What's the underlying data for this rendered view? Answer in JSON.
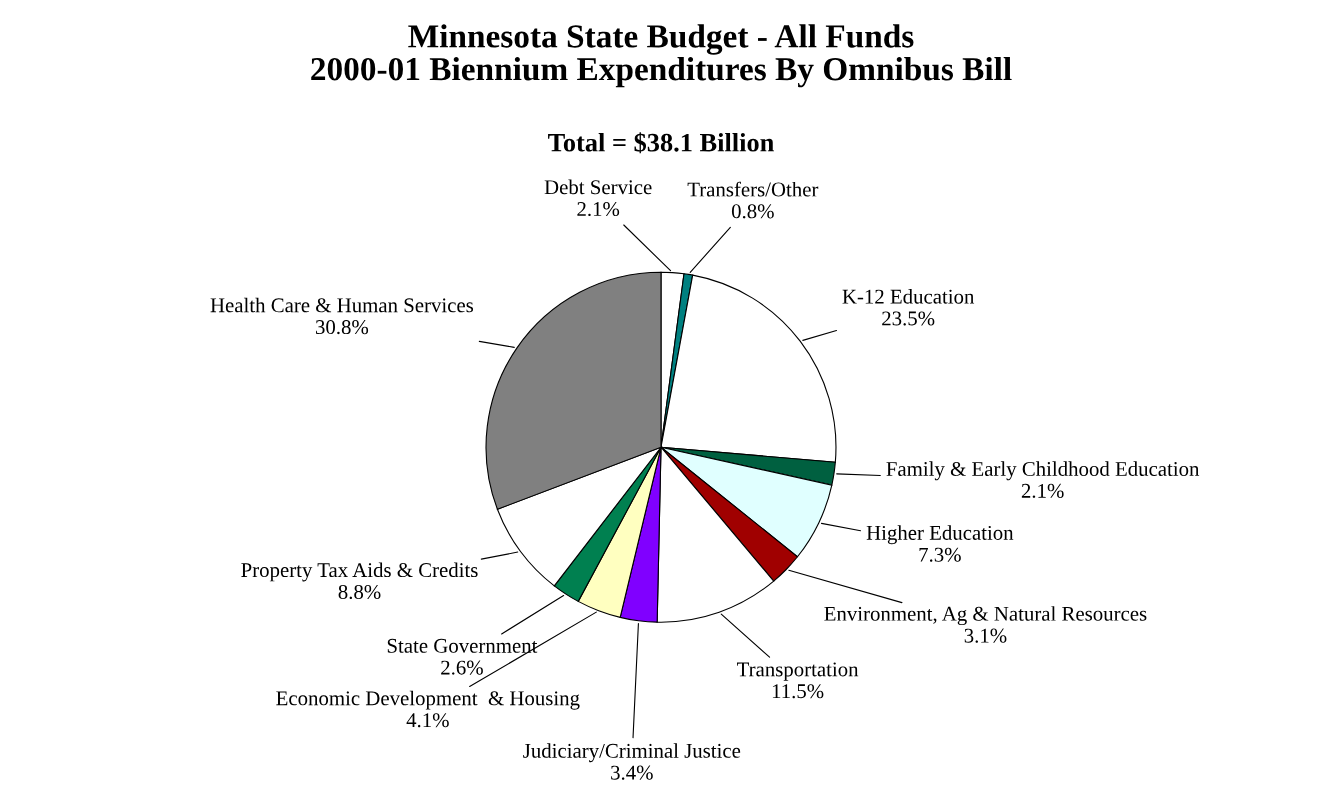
{
  "chart_data": {
    "type": "pie",
    "title": "Minnesota State Budget - All Funds\n2000-01 Biennium Expenditures By Omnibus Bill",
    "subtitle": "Total = $38.1 Billion",
    "categories": [
      "Debt Service",
      "Transfers/Other",
      "K-12 Education",
      "Family & Early Childhood Education",
      "Higher Education",
      "Environment, Ag & Natural Resources",
      "Transportation",
      "Judiciary/Criminal Justice",
      "Economic Development  & Housing",
      "State Government",
      "Property Tax Aids & Credits",
      "Health Care & Human Services"
    ],
    "values": [
      2.1,
      0.8,
      23.5,
      2.1,
      7.3,
      3.1,
      11.5,
      3.4,
      4.1,
      2.6,
      8.8,
      30.8
    ],
    "colors": [
      "#ffffff",
      "#008080",
      "#ffffff",
      "#006040",
      "#e0ffff",
      "#a00000",
      "#ffffff",
      "#8000ff",
      "#ffffc0",
      "#008050",
      "#ffffff",
      "#808080"
    ],
    "value_labels": [
      "2.1%",
      "0.8%",
      "23.5%",
      "2.1%",
      "7.3%",
      "3.1%",
      "11.5%",
      "3.4%",
      "4.1%",
      "2.6%",
      "8.8%",
      "30.8%"
    ],
    "legend": false
  }
}
